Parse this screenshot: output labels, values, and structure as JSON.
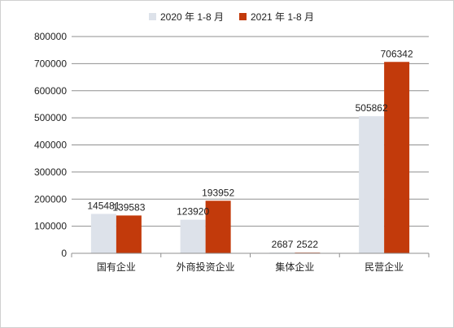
{
  "chart_data": {
    "type": "bar",
    "categories": [
      "国有企业",
      "外商投资企业",
      "集体企业",
      "民营企业"
    ],
    "series": [
      {
        "name": "2020 年 1-8 月",
        "values": [
          145481,
          123920,
          2687,
          505862
        ],
        "color": "#dde2ea"
      },
      {
        "name": "2021 年 1-8 月",
        "values": [
          139583,
          193952,
          2522,
          706342
        ],
        "color": "#c23a0b"
      }
    ],
    "data_labels": [
      [
        "145481",
        "123920",
        "2687",
        "505862"
      ],
      [
        "139583",
        "193952",
        "2522",
        "706342"
      ]
    ],
    "yticks": [
      "0",
      "100000",
      "200000",
      "300000",
      "400000",
      "500000",
      "600000",
      "700000",
      "800000"
    ],
    "ylim": [
      0,
      800000
    ],
    "grid": true,
    "legend_position": "top-center"
  }
}
